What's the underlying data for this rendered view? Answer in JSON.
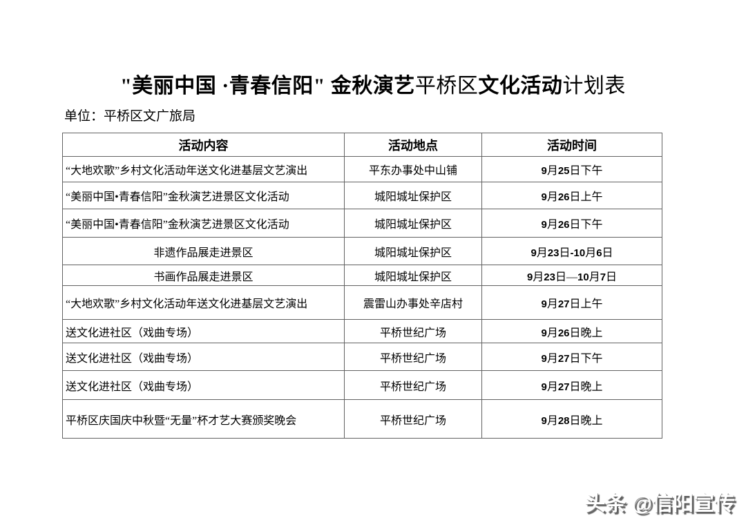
{
  "title": {
    "part1": "\"美丽中国 ·青春信阳\" 金秋演艺",
    "part2": "平桥区",
    "part3": "文化活动",
    "part4": "计划表"
  },
  "unit_label": "单位：平桥区文广旅局",
  "table": {
    "headers": [
      "活动内容",
      "活动地点",
      "活动时间"
    ],
    "rows": [
      {
        "content": "“大地欢歌”乡村文化活动年送文化进基层文艺演出",
        "location": "平东办事处中山铺",
        "time": "9月25日下午"
      },
      {
        "content": "“美丽中国•青春信阳”金秋演艺进景区文化活动",
        "location": "城阳城址保护区",
        "time": "9月26日上午"
      },
      {
        "content": "“美丽中国•青春信阳”金秋演艺进景区文化活动",
        "location": "城阳城址保护区",
        "time": "9月26日下午"
      },
      {
        "content": "非遗作品展走进景区",
        "location": "城阳城址保护区",
        "time": "9月23日-10月6日"
      },
      {
        "content": "书画作品展走进景区",
        "location": "城阳城址保护区",
        "time": "9月23日—10月7日"
      },
      {
        "content": "“大地欢歌”乡村文化活动年送文化进基层文艺演出",
        "location": "震雷山办事处辛店村",
        "time": "9月27日上午"
      },
      {
        "content": "送文化进社区（戏曲专场）",
        "location": "平桥世纪广场",
        "time": "9月26日晚上"
      },
      {
        "content": "送文化进社区（戏曲专场）",
        "location": "平桥世纪广场",
        "time": "9月27日下午"
      },
      {
        "content": "送文化进社区（戏曲专场）",
        "location": "平桥世纪广场",
        "time": "9月27日晚上"
      },
      {
        "content": "平桥区庆国庆中秋暨“无量”杯才艺大赛颁奖晚会",
        "location": "平桥世纪广场",
        "time": "9月28日晚上"
      }
    ]
  },
  "watermark": {
    "text": "头条 @信阳宣传"
  }
}
